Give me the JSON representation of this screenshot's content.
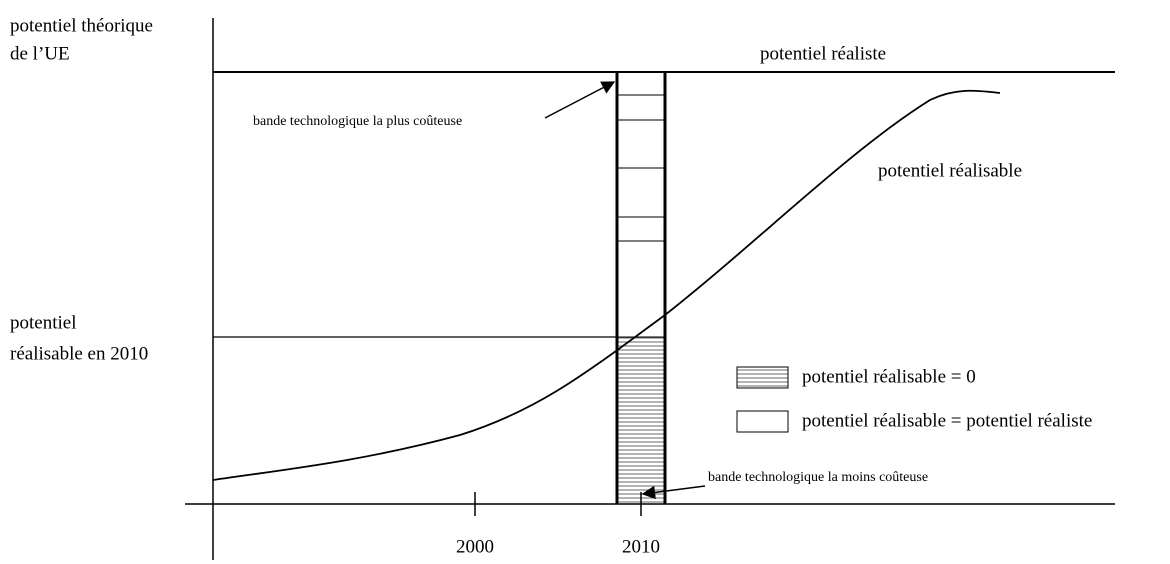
{
  "labels": {
    "y_axis_top": [
      "potentiel théorique",
      "de l’UE"
    ],
    "realistic": "potentiel réaliste",
    "achievable": "potentiel réalisable",
    "achievable_2010": [
      "potentiel",
      "réalisable en 2010"
    ],
    "costliest_band": "bande technologique la plus coûteuse",
    "cheapest_band": "bande technologique la moins coûteuse",
    "x_ticks": [
      "2000",
      "2010"
    ]
  },
  "legend": [
    "potentiel réalisable = 0",
    "potentiel réalisable = potentiel réaliste"
  ]
}
